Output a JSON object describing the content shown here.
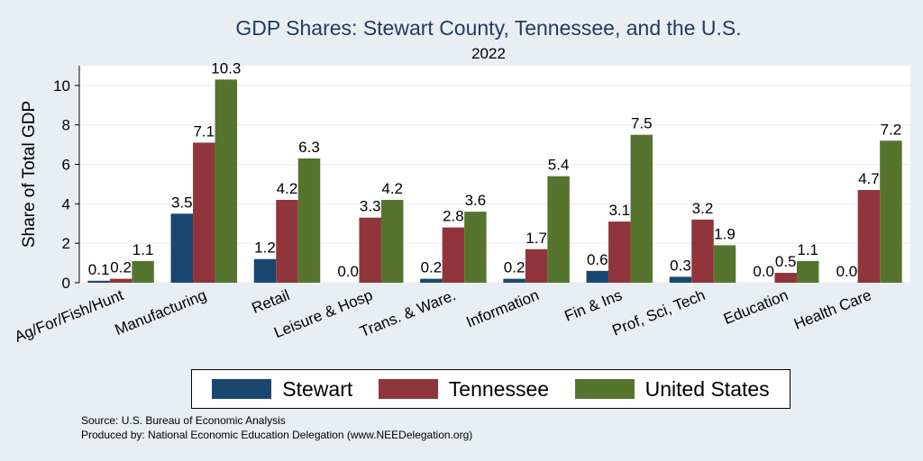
{
  "colors": {
    "background": "#e8eef2",
    "plot_background": "#ffffff",
    "grid": "#e8eef2",
    "Stewart": "#1a476f",
    "Tennessee": "#90353b",
    "United States": "#55752f"
  },
  "footer": {
    "source": "Source: U.S. Bureau of Economic Analysis",
    "produced": "Produced by: National Economic Education Delegation (www.NEEDelegation.org)"
  },
  "chart_data": {
    "type": "bar",
    "title": "GDP Shares: Stewart County, Tennessee, and the U.S.",
    "subtitle": "2022",
    "xlabel": "",
    "ylabel": "Share of Total GDP",
    "ylim": [
      0,
      11
    ],
    "yticks": [
      0,
      2,
      4,
      6,
      8,
      10
    ],
    "grid": true,
    "legend_position": "bottom",
    "categories": [
      "Ag/For/Fish/Hunt",
      "Manufacturing",
      "Retail",
      "Leisure & Hosp",
      "Trans. & Ware.",
      "Information",
      "Fin & Ins",
      "Prof, Sci, Tech",
      "Education",
      "Health Care"
    ],
    "series": [
      {
        "name": "Stewart",
        "values": [
          0.1,
          3.5,
          1.2,
          0.0,
          0.2,
          0.2,
          0.6,
          0.3,
          0.0,
          0.0
        ]
      },
      {
        "name": "Tennessee",
        "values": [
          0.2,
          7.1,
          4.2,
          3.3,
          2.8,
          1.7,
          3.1,
          3.2,
          0.5,
          4.7
        ]
      },
      {
        "name": "United States",
        "values": [
          1.1,
          10.3,
          6.3,
          4.2,
          3.6,
          5.4,
          7.5,
          1.9,
          1.1,
          7.2
        ]
      }
    ]
  }
}
